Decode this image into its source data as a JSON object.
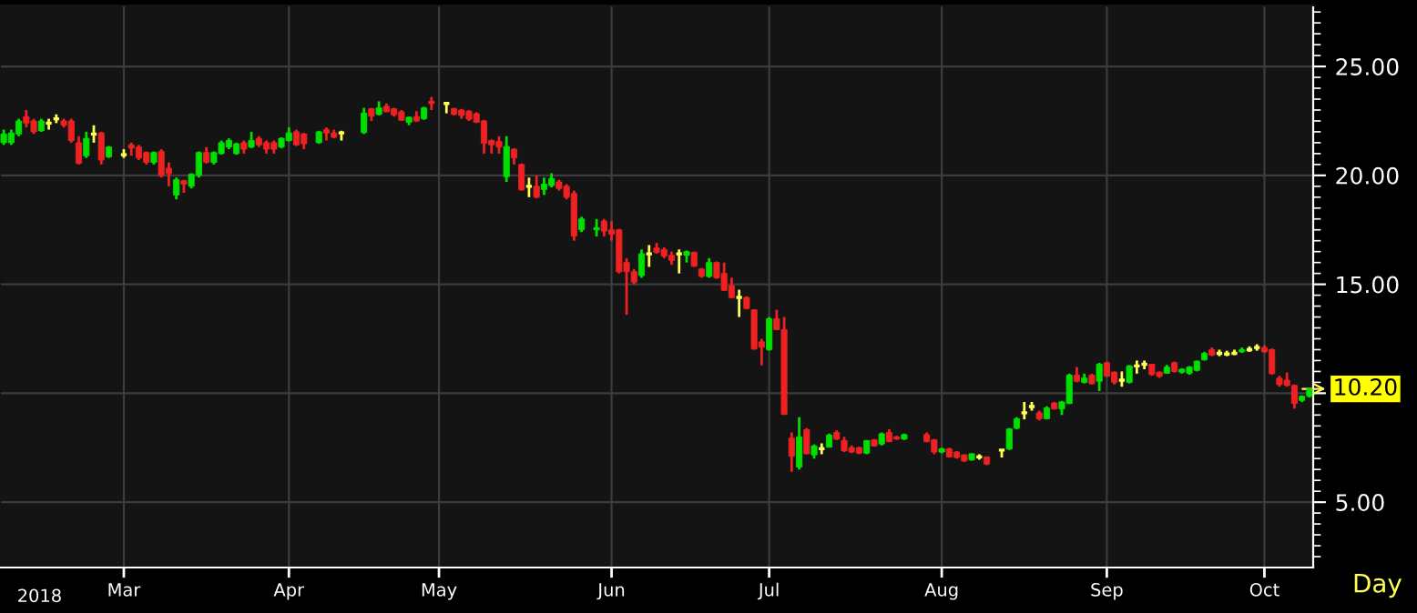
{
  "chart_data": {
    "type": "candlestick",
    "categories": [
      null,
      null,
      null,
      null,
      null,
      null,
      null,
      null,
      null,
      null,
      null,
      null,
      null,
      null,
      null,
      null,
      "Mar",
      null,
      null,
      null,
      null,
      null,
      null,
      null,
      null,
      null,
      null,
      null,
      null,
      null,
      null,
      null,
      null,
      null,
      null,
      null,
      null,
      null,
      "Apr",
      null,
      null,
      null,
      null,
      null,
      null,
      null,
      null,
      null,
      null,
      null,
      null,
      null,
      null,
      null,
      null,
      null,
      null,
      null,
      "May",
      null,
      null,
      null,
      null,
      null,
      null,
      null,
      null,
      null,
      null,
      null,
      null,
      null,
      null,
      null,
      null,
      null,
      null,
      null,
      null,
      null,
      null,
      "Jun",
      null,
      null,
      null,
      null,
      null,
      null,
      null,
      null,
      null,
      null,
      null,
      null,
      null,
      null,
      null,
      null,
      null,
      null,
      null,
      null,
      "Jul",
      null,
      null,
      null,
      null,
      null,
      null,
      null,
      null,
      null,
      null,
      null,
      null,
      null,
      null,
      null,
      null,
      null,
      null,
      null,
      null,
      null,
      null,
      "Aug",
      null,
      null,
      null,
      null,
      null,
      null,
      null,
      null,
      null,
      null,
      null,
      null,
      null,
      null,
      null,
      null,
      null,
      null,
      null,
      null,
      null,
      "Sep",
      null,
      null,
      null,
      null,
      null,
      null,
      null,
      null,
      null,
      null,
      null,
      null,
      null,
      null,
      null,
      null,
      null,
      null,
      null,
      null,
      "Oct",
      null,
      null,
      null,
      null,
      null,
      null
    ],
    "ohlc": [
      [
        21.5,
        22.1,
        21.4,
        21.9
      ],
      [
        21.5,
        22.1,
        21.4,
        21.95
      ],
      [
        21.9,
        22.6,
        21.8,
        22.5
      ],
      [
        22.7,
        23.0,
        22.2,
        22.4
      ],
      [
        22.5,
        22.6,
        21.9,
        22.0
      ],
      [
        22.05,
        22.6,
        22.0,
        22.5
      ],
      [
        22.4,
        22.6,
        22.1,
        22.4
      ],
      [
        22.6,
        22.8,
        22.4,
        22.6
      ],
      [
        22.5,
        22.6,
        22.2,
        22.3
      ],
      [
        22.5,
        22.6,
        21.5,
        21.6
      ],
      [
        21.5,
        21.8,
        20.5,
        20.55
      ],
      [
        20.9,
        22.0,
        20.8,
        21.7
      ],
      [
        21.9,
        22.3,
        21.5,
        21.9
      ],
      [
        21.95,
        22.0,
        20.5,
        20.7
      ],
      [
        20.85,
        21.35,
        20.8,
        21.3
      ],
      null,
      [
        20.95,
        21.2,
        20.8,
        20.95
      ],
      [
        21.4,
        21.5,
        20.9,
        21.25
      ],
      [
        21.3,
        21.4,
        20.7,
        20.8
      ],
      [
        21.05,
        21.1,
        20.5,
        20.6
      ],
      [
        20.6,
        21.1,
        20.5,
        21.05
      ],
      [
        21.1,
        21.2,
        19.9,
        20.0
      ],
      [
        20.33,
        20.6,
        19.5,
        20.08
      ],
      [
        19.1,
        19.9,
        18.9,
        19.8
      ],
      [
        19.75,
        19.8,
        19.2,
        19.6
      ],
      [
        19.5,
        20.1,
        19.4,
        20.05
      ],
      [
        20.0,
        21.1,
        19.9,
        21.05
      ],
      [
        21.05,
        21.3,
        20.55,
        20.6
      ],
      [
        20.6,
        21.1,
        20.5,
        21.05
      ],
      [
        21.0,
        21.6,
        20.95,
        21.5
      ],
      [
        21.3,
        21.7,
        21.2,
        21.6
      ],
      [
        21.0,
        21.5,
        20.95,
        21.45
      ],
      [
        21.5,
        21.6,
        21.0,
        21.2
      ],
      [
        21.3,
        22.0,
        21.25,
        21.6
      ],
      [
        21.7,
        21.8,
        21.3,
        21.4
      ],
      [
        21.5,
        21.6,
        21.0,
        21.2
      ],
      [
        21.5,
        21.6,
        21.0,
        21.2
      ],
      [
        21.3,
        21.75,
        21.25,
        21.7
      ],
      [
        21.6,
        22.2,
        21.55,
        21.95
      ],
      [
        22.0,
        22.1,
        21.35,
        21.4
      ],
      [
        21.9,
        21.95,
        21.2,
        21.45
      ],
      null,
      [
        21.5,
        22.05,
        21.45,
        22.0
      ],
      [
        22.1,
        22.2,
        21.6,
        21.95
      ],
      [
        21.95,
        22.1,
        21.7,
        21.75
      ],
      [
        21.95,
        22.05,
        21.6,
        21.95
      ],
      null,
      null,
      [
        21.97,
        23.1,
        21.9,
        22.86
      ],
      [
        23.06,
        23.1,
        22.5,
        22.72
      ],
      [
        22.8,
        23.4,
        22.75,
        23.1
      ],
      [
        23.17,
        23.3,
        22.9,
        22.92
      ],
      [
        23.06,
        23.1,
        22.7,
        22.78
      ],
      [
        22.92,
        23.0,
        22.5,
        22.53
      ],
      [
        22.44,
        22.7,
        22.3,
        22.67
      ],
      [
        22.7,
        22.95,
        22.45,
        22.5
      ],
      [
        22.6,
        23.15,
        22.55,
        23.1
      ],
      [
        23.4,
        23.6,
        23.0,
        23.3
      ],
      null,
      [
        23.3,
        23.35,
        22.85,
        23.3
      ],
      [
        23.06,
        23.1,
        22.75,
        22.8
      ],
      [
        23.0,
        23.05,
        22.6,
        22.75
      ],
      [
        22.94,
        23.0,
        22.5,
        22.58
      ],
      [
        22.83,
        22.9,
        22.4,
        22.44
      ],
      [
        22.5,
        22.55,
        21.0,
        21.47
      ],
      [
        21.6,
        21.65,
        21.0,
        21.4
      ],
      [
        21.55,
        21.8,
        21.0,
        21.3
      ],
      [
        19.94,
        21.8,
        19.7,
        21.33
      ],
      [
        21.2,
        21.25,
        20.5,
        20.8
      ],
      [
        20.5,
        20.55,
        19.3,
        19.33
      ],
      [
        19.5,
        19.9,
        19.0,
        19.5
      ],
      [
        19.5,
        20.0,
        18.95,
        19.0
      ],
      [
        19.35,
        19.9,
        19.1,
        19.6
      ],
      [
        19.53,
        20.1,
        19.45,
        19.86
      ],
      [
        19.7,
        19.8,
        19.3,
        19.4
      ],
      [
        19.5,
        19.6,
        18.9,
        19.0
      ],
      [
        19.17,
        19.3,
        17.0,
        17.22
      ],
      [
        17.5,
        18.1,
        17.4,
        18.0
      ],
      null,
      [
        17.5,
        18.0,
        17.2,
        17.6
      ],
      [
        17.9,
        18.0,
        17.2,
        17.44
      ],
      [
        17.5,
        17.9,
        17.0,
        17.3
      ],
      [
        17.5,
        17.55,
        15.5,
        15.58
      ],
      [
        16.0,
        16.2,
        13.6,
        15.58
      ],
      [
        15.58,
        15.7,
        15.0,
        15.1
      ],
      [
        15.4,
        16.6,
        15.3,
        16.4
      ],
      [
        16.4,
        16.8,
        15.8,
        16.4
      ],
      [
        16.67,
        16.9,
        16.4,
        16.47
      ],
      [
        16.6,
        16.7,
        16.2,
        16.3
      ],
      [
        16.33,
        16.5,
        15.9,
        16.1
      ],
      [
        16.4,
        16.6,
        15.5,
        16.4
      ],
      [
        16.33,
        16.55,
        16.0,
        16.5
      ],
      [
        16.47,
        16.5,
        15.8,
        15.83
      ],
      [
        15.7,
        15.75,
        15.3,
        15.36
      ],
      [
        15.36,
        16.2,
        15.3,
        16.0
      ],
      [
        16.0,
        16.05,
        15.25,
        15.3
      ],
      [
        15.5,
        16.0,
        14.7,
        14.72
      ],
      [
        14.94,
        15.3,
        14.35,
        14.39
      ],
      [
        14.4,
        14.75,
        13.5,
        14.4
      ],
      [
        14.4,
        14.45,
        13.85,
        13.89
      ],
      [
        13.83,
        13.85,
        12.0,
        12.03
      ],
      [
        12.36,
        12.5,
        11.28,
        12.11
      ],
      [
        12.0,
        13.5,
        11.95,
        13.42
      ],
      [
        13.42,
        13.83,
        12.9,
        12.92
      ],
      [
        12.92,
        13.5,
        9.0,
        9.03
      ],
      [
        7.94,
        8.2,
        6.4,
        7.11
      ],
      [
        6.61,
        8.9,
        6.5,
        8.0
      ],
      [
        8.33,
        8.4,
        7.2,
        7.22
      ],
      [
        7.17,
        7.65,
        7.0,
        7.58
      ],
      [
        7.45,
        7.7,
        7.2,
        7.45
      ],
      [
        7.53,
        8.15,
        7.5,
        8.08
      ],
      [
        8.2,
        8.3,
        7.85,
        7.9
      ],
      [
        7.83,
        8.0,
        7.3,
        7.36
      ],
      [
        7.5,
        7.6,
        7.25,
        7.3
      ],
      [
        7.5,
        7.55,
        7.2,
        7.25
      ],
      [
        7.25,
        7.85,
        7.2,
        7.83
      ],
      [
        7.86,
        7.9,
        7.55,
        7.58
      ],
      [
        7.67,
        8.2,
        7.6,
        8.14
      ],
      [
        8.2,
        8.35,
        7.75,
        7.78
      ],
      [
        8.0,
        8.05,
        7.85,
        7.9
      ],
      [
        7.9,
        8.15,
        7.85,
        8.1
      ],
      null,
      null,
      [
        8.1,
        8.2,
        7.75,
        7.78
      ],
      [
        7.86,
        7.9,
        7.2,
        7.3
      ],
      [
        7.3,
        7.5,
        7.25,
        7.45
      ],
      [
        7.45,
        7.5,
        7.05,
        7.08
      ],
      [
        7.3,
        7.35,
        7.0,
        7.05
      ],
      [
        7.17,
        7.2,
        6.85,
        6.89
      ],
      [
        6.94,
        7.25,
        6.9,
        7.22
      ],
      [
        7.08,
        7.2,
        6.95,
        7.08
      ],
      [
        7.08,
        7.1,
        6.7,
        6.75
      ],
      null,
      [
        7.39,
        7.4,
        7.05,
        7.39
      ],
      [
        7.44,
        8.4,
        7.4,
        8.36
      ],
      [
        8.39,
        8.9,
        8.35,
        8.83
      ],
      [
        9.1,
        9.6,
        8.8,
        9.1
      ],
      [
        9.39,
        9.6,
        9.2,
        9.39
      ],
      [
        9.1,
        9.2,
        8.75,
        8.83
      ],
      [
        8.83,
        9.4,
        8.8,
        9.33
      ],
      [
        9.55,
        9.6,
        9.25,
        9.28
      ],
      [
        9.28,
        9.65,
        9.0,
        9.6
      ],
      [
        9.53,
        10.9,
        9.5,
        10.83
      ],
      [
        10.83,
        11.2,
        10.5,
        10.55
      ],
      [
        10.5,
        10.9,
        10.45,
        10.7
      ],
      [
        10.83,
        10.9,
        10.4,
        10.44
      ],
      [
        10.55,
        11.4,
        10.1,
        11.33
      ],
      [
        11.4,
        11.45,
        10.75,
        10.78
      ],
      [
        10.97,
        11.0,
        10.4,
        10.5
      ],
      [
        10.6,
        11.0,
        10.3,
        10.6
      ],
      [
        10.5,
        11.3,
        10.45,
        11.25
      ],
      [
        11.25,
        11.5,
        10.9,
        11.25
      ],
      [
        11.33,
        11.5,
        11.1,
        11.33
      ],
      [
        11.33,
        11.35,
        10.8,
        10.86
      ],
      [
        10.97,
        11.0,
        10.7,
        10.78
      ],
      [
        10.92,
        11.3,
        10.9,
        11.2
      ],
      [
        11.4,
        11.45,
        10.95,
        11.0
      ],
      [
        10.97,
        11.15,
        10.9,
        11.1
      ],
      [
        10.92,
        11.25,
        10.85,
        11.2
      ],
      [
        11.05,
        11.5,
        11.0,
        11.47
      ],
      [
        11.53,
        11.9,
        11.5,
        11.83
      ],
      [
        12.0,
        12.1,
        11.7,
        11.75
      ],
      [
        11.83,
        12.0,
        11.7,
        11.83
      ],
      [
        11.8,
        11.95,
        11.7,
        11.8
      ],
      [
        11.83,
        12.0,
        11.75,
        11.83
      ],
      [
        11.9,
        12.1,
        11.85,
        12.0
      ],
      [
        12.0,
        12.15,
        11.9,
        12.0
      ],
      [
        12.1,
        12.25,
        11.95,
        12.1
      ],
      [
        12.1,
        12.2,
        11.85,
        11.9
      ],
      [
        12.0,
        12.05,
        10.85,
        10.9
      ],
      [
        10.69,
        10.8,
        10.3,
        10.4
      ],
      [
        10.6,
        10.95,
        10.3,
        10.36
      ],
      [
        10.36,
        10.4,
        9.3,
        9.53
      ],
      [
        9.67,
        9.9,
        9.6,
        9.86
      ],
      [
        9.86,
        10.2,
        9.8,
        10.2
      ]
    ],
    "colors": [
      "#00e000",
      "#00e000",
      "#00e000",
      "#ee2222",
      "#ee2222",
      "#00e000",
      "#ffff55",
      "#ffff55",
      "#ee2222",
      "#ee2222",
      "#ee2222",
      "#00e000",
      "#ffff55",
      "#ee2222",
      "#00e000",
      null,
      "#ffff55",
      "#ee2222",
      "#ee2222",
      "#ee2222",
      "#00e000",
      "#ee2222",
      "#ee2222",
      "#00e000",
      "#ee2222",
      "#00e000",
      "#00e000",
      "#ee2222",
      "#00e000",
      "#00e000",
      "#00e000",
      "#00e000",
      "#ee2222",
      "#00e000",
      "#ee2222",
      "#ee2222",
      "#ee2222",
      "#00e000",
      "#00e000",
      "#ee2222",
      "#ee2222",
      null,
      "#00e000",
      "#ee2222",
      "#ee2222",
      "#ffff55",
      null,
      null,
      "#00e000",
      "#ee2222",
      "#00e000",
      "#ee2222",
      "#ee2222",
      "#ee2222",
      "#00e000",
      "#ee2222",
      "#00e000",
      "#ee2222",
      null,
      "#ffff55",
      "#ee2222",
      "#ee2222",
      "#ee2222",
      "#ee2222",
      "#ee2222",
      "#ee2222",
      "#ee2222",
      "#00e000",
      "#ee2222",
      "#ee2222",
      "#ffff55",
      "#ee2222",
      "#00e000",
      "#00e000",
      "#ee2222",
      "#ee2222",
      "#ee2222",
      "#00e000",
      null,
      "#00e000",
      "#ee2222",
      "#ee2222",
      "#ee2222",
      "#ee2222",
      "#ee2222",
      "#00e000",
      "#ffff55",
      "#ee2222",
      "#ee2222",
      "#ee2222",
      "#ffff55",
      "#00e000",
      "#ee2222",
      "#ee2222",
      "#00e000",
      "#ee2222",
      "#ee2222",
      "#ee2222",
      "#ffff55",
      "#ee2222",
      "#ee2222",
      "#ee2222",
      "#00e000",
      "#ee2222",
      "#ee2222",
      "#ee2222",
      "#00e000",
      "#ee2222",
      "#00e000",
      "#ffff55",
      "#00e000",
      "#ee2222",
      "#ee2222",
      "#ee2222",
      "#ee2222",
      "#00e000",
      "#ee2222",
      "#00e000",
      "#ee2222",
      "#ee2222",
      "#00e000",
      null,
      null,
      "#ee2222",
      "#ee2222",
      "#00e000",
      "#ee2222",
      "#ee2222",
      "#ee2222",
      "#00e000",
      "#ffff55",
      "#ee2222",
      null,
      "#ffff55",
      "#00e000",
      "#00e000",
      "#ffff55",
      "#ffff55",
      "#ee2222",
      "#00e000",
      "#ee2222",
      "#00e000",
      "#00e000",
      "#ee2222",
      "#00e000",
      "#ee2222",
      "#00e000",
      "#ee2222",
      "#ee2222",
      "#ffff55",
      "#00e000",
      "#ffff55",
      "#ffff55",
      "#ee2222",
      "#ee2222",
      "#00e000",
      "#ee2222",
      "#00e000",
      "#00e000",
      "#00e000",
      "#00e000",
      "#ee2222",
      "#ffff55",
      "#ffff55",
      "#ffff55",
      "#00e000",
      "#ffff55",
      "#ffff55",
      "#ee2222",
      "#ee2222",
      "#ee2222",
      "#ee2222",
      "#ee2222",
      "#00e000",
      "#00e000"
    ],
    "ylim": [
      2.0,
      27.8
    ],
    "yticks": [
      {
        "value": 5,
        "label": "5.00"
      },
      {
        "value": 10,
        "label": null
      },
      {
        "value": 15,
        "label": "15.00"
      },
      {
        "value": 20,
        "label": "20.00"
      },
      {
        "value": 25,
        "label": "25.00"
      },
      {
        "value": 2.5,
        "label": null
      },
      {
        "value": 3,
        "label": null
      },
      {
        "value": 3.5,
        "label": null
      },
      {
        "value": 4,
        "label": null
      },
      {
        "value": 4.5,
        "label": null
      },
      {
        "value": 5.5,
        "label": null
      },
      {
        "value": 6,
        "label": null
      },
      {
        "value": 6.5,
        "label": null
      },
      {
        "value": 7,
        "label": null
      },
      {
        "value": 7.5,
        "label": null
      },
      {
        "value": 8,
        "label": null
      },
      {
        "value": 8.5,
        "label": null
      },
      {
        "value": 9,
        "label": null
      },
      {
        "value": 9.5,
        "label": null
      },
      {
        "value": 10.5,
        "label": null
      },
      {
        "value": 11,
        "label": null
      },
      {
        "value": 11.5,
        "label": null
      },
      {
        "value": 12,
        "label": null
      },
      {
        "value": 12.5,
        "label": null
      },
      {
        "value": 13,
        "label": null
      },
      {
        "value": 13.5,
        "label": null
      },
      {
        "value": 14,
        "label": null
      },
      {
        "value": 14.5,
        "label": null
      },
      {
        "value": 15.5,
        "label": null
      },
      {
        "value": 16,
        "label": null
      },
      {
        "value": 16.5,
        "label": null
      },
      {
        "value": 17,
        "label": null
      },
      {
        "value": 17.5,
        "label": null
      },
      {
        "value": 18,
        "label": null
      },
      {
        "value": 18.5,
        "label": null
      },
      {
        "value": 19,
        "label": null
      },
      {
        "value": 19.5,
        "label": null
      },
      {
        "value": 20.5,
        "label": null
      },
      {
        "value": 21,
        "label": null
      },
      {
        "value": 21.5,
        "label": null
      },
      {
        "value": 22,
        "label": null
      },
      {
        "value": 22.5,
        "label": null
      },
      {
        "value": 23,
        "label": null
      },
      {
        "value": 23.5,
        "label": null
      },
      {
        "value": 24,
        "label": null
      },
      {
        "value": 24.5,
        "label": null
      },
      {
        "value": 25.5,
        "label": null
      },
      {
        "value": 26,
        "label": null
      },
      {
        "value": 26.5,
        "label": null
      },
      {
        "value": 27,
        "label": null
      },
      {
        "value": 27.5,
        "label": null
      }
    ],
    "grid": true,
    "annotations": [
      "2018",
      "Day",
      "10.20"
    ]
  }
}
